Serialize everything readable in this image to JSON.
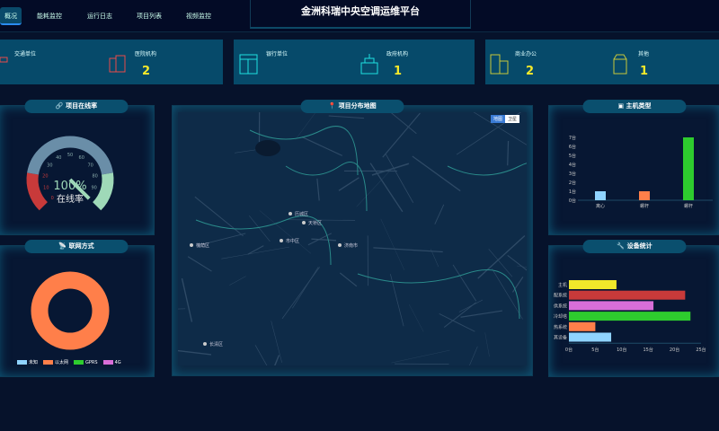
{
  "header": {
    "title": "金洲科瑞中央空调运维平台",
    "nav": [
      {
        "label": "概况",
        "active": true
      },
      {
        "label": "能耗监控"
      },
      {
        "label": "运行日志"
      },
      {
        "label": "项目列表"
      },
      {
        "label": "视频监控"
      }
    ]
  },
  "stats": [
    {
      "label": "交通单位",
      "value": "",
      "icon": "car-icon",
      "color": "#e84b4b"
    },
    {
      "label": "医院机构",
      "value": "2",
      "icon": "hospital-icon",
      "color": "#e84b4b"
    },
    {
      "label": "银行单位",
      "value": "",
      "icon": "bank-icon",
      "color": "#1fe0e0"
    },
    {
      "label": "政府机构",
      "value": "1",
      "icon": "government-icon",
      "color": "#1fe0e0"
    },
    {
      "label": "商业办公",
      "value": "2",
      "icon": "office-building-icon",
      "color": "#c8c83a"
    },
    {
      "label": "其他",
      "value": "1",
      "icon": "other-building-icon",
      "color": "#c8c83a"
    }
  ],
  "online": {
    "title": "项目在线率",
    "value": 100,
    "value_text": "100%",
    "label": "在线率",
    "ticks": [
      "0",
      "10",
      "20",
      "30",
      "40",
      "50",
      "60",
      "70",
      "80",
      "90"
    ]
  },
  "network": {
    "title": "联网方式",
    "legend": [
      {
        "name": "未知",
        "color": "#8fd3ff",
        "value": 0
      },
      {
        "name": "以太网",
        "color": "#ff7f4a",
        "value": 100
      },
      {
        "name": "GPRS",
        "color": "#2ecc2e",
        "value": 0
      },
      {
        "name": "4G",
        "color": "#d86ed8",
        "value": 0
      }
    ]
  },
  "map": {
    "title": "项目分布地图",
    "buttons": [
      "地图",
      "卫星"
    ],
    "labels": [
      "济南市",
      "历城区",
      "天桥区",
      "槐荫区",
      "市中区",
      "长清区"
    ]
  },
  "host_type": {
    "title": "主机类型",
    "chart_data": {
      "type": "bar",
      "categories": [
        "离心",
        "螺杆",
        "螺杆"
      ],
      "values": [
        1,
        1,
        7
      ],
      "colors": [
        "#8fd3ff",
        "#ff7f4a",
        "#2ecc2e"
      ],
      "yticks": [
        "0台",
        "1台",
        "2台",
        "3台",
        "4台",
        "5台",
        "6台",
        "7台"
      ],
      "ylim": [
        0,
        7
      ]
    }
  },
  "device_stats": {
    "title": "设备统计",
    "chart_data": {
      "type": "bar",
      "orientation": "horizontal",
      "categories": [
        "主机",
        "配系统",
        "供系统",
        "冷却塔",
        "热系统",
        "其设备"
      ],
      "values": [
        9,
        22,
        16,
        23,
        5,
        8
      ],
      "colors": [
        "#f0e82a",
        "#c83a3a",
        "#d86ed8",
        "#2ecc2e",
        "#ff7f4a",
        "#8fd3ff"
      ],
      "xticks": [
        "0台",
        "5台",
        "10台",
        "15台",
        "20台",
        "25台"
      ],
      "xlim": [
        0,
        25
      ]
    }
  }
}
